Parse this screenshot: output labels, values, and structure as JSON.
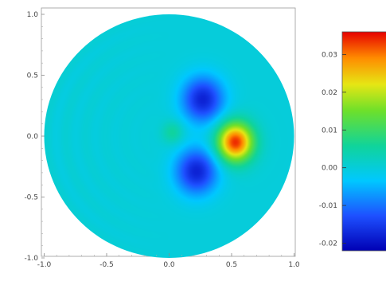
{
  "chart_data": {
    "type": "heatmap",
    "domain": "disk",
    "xlim": [
      -1.0,
      1.0
    ],
    "ylim": [
      -1.0,
      1.0
    ],
    "x_ticks": [
      "-1.0",
      "-0.5",
      "0.0",
      "0.5",
      "1.0"
    ],
    "y_ticks": [
      "1.0",
      "0.5",
      "0.0",
      "-0.5",
      "-1.0"
    ],
    "colorbar": {
      "range": [
        -0.022,
        0.036
      ],
      "ticks": [
        "0.03",
        "0.02",
        "0.01",
        "0.00",
        "-0.01",
        "-0.02"
      ],
      "colormap": "rainbow (blue=low, red=high)"
    },
    "background_value": 0.0,
    "features": [
      {
        "kind": "maximum",
        "x": 0.53,
        "y": -0.05,
        "value": 0.034
      },
      {
        "kind": "minimum",
        "x": 0.27,
        "y": 0.3,
        "value": -0.018
      },
      {
        "kind": "minimum",
        "x": 0.22,
        "y": -0.29,
        "value": -0.018
      },
      {
        "kind": "local maximum",
        "x": 0.03,
        "y": 0.03,
        "value": 0.006
      }
    ]
  }
}
